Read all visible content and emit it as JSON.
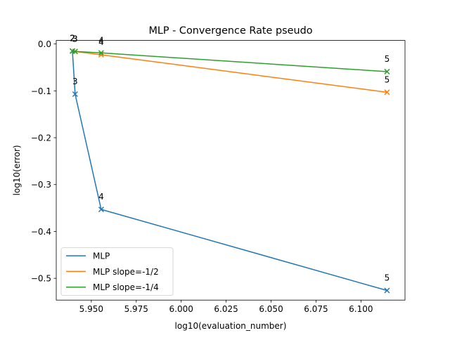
{
  "chart_data": {
    "type": "line",
    "title": "MLP - Convergence Rate pseudo",
    "xlabel": "log10(evaluation_number)",
    "ylabel": "log10(error)",
    "xlim": [
      5.9305,
      6.1245
    ],
    "ylim": [
      -0.5465,
      0.0075
    ],
    "xticks": [
      5.95,
      5.975,
      6.0,
      6.025,
      6.05,
      6.075,
      6.1
    ],
    "xtick_labels": [
      "5.950",
      "5.975",
      "6.000",
      "6.025",
      "6.050",
      "6.075",
      "6.100"
    ],
    "yticks": [
      0.0,
      -0.1,
      -0.2,
      -0.3,
      -0.4,
      -0.5
    ],
    "ytick_labels": [
      "0.0",
      "−0.1",
      "−0.2",
      "−0.3",
      "−0.4",
      "−0.5"
    ],
    "grid": false,
    "legend_position": "lower-left",
    "series": [
      {
        "name": "MLP",
        "color": "#1f77b4",
        "marker": "x",
        "x": [
          5.9395,
          5.941,
          5.9555,
          6.1145
        ],
        "y": [
          -0.015,
          -0.107,
          -0.353,
          -0.526
        ],
        "point_labels": [
          "2",
          "3",
          "4",
          "5"
        ]
      },
      {
        "name": "MLP slope=-1/2",
        "color": "#ff7f0e",
        "marker": "x",
        "x": [
          5.9395,
          5.941,
          5.9555,
          6.1145
        ],
        "y": [
          -0.015,
          -0.016,
          -0.023,
          -0.103
        ],
        "point_labels": [
          "2",
          "3",
          "4",
          "5"
        ]
      },
      {
        "name": "MLP slope=-1/4",
        "color": "#2ca02c",
        "marker": "x",
        "x": [
          5.9395,
          5.941,
          5.9555,
          6.1145
        ],
        "y": [
          -0.015,
          -0.016,
          -0.019,
          -0.059
        ],
        "point_labels": [
          "2",
          "3",
          "4",
          "5"
        ]
      }
    ]
  }
}
